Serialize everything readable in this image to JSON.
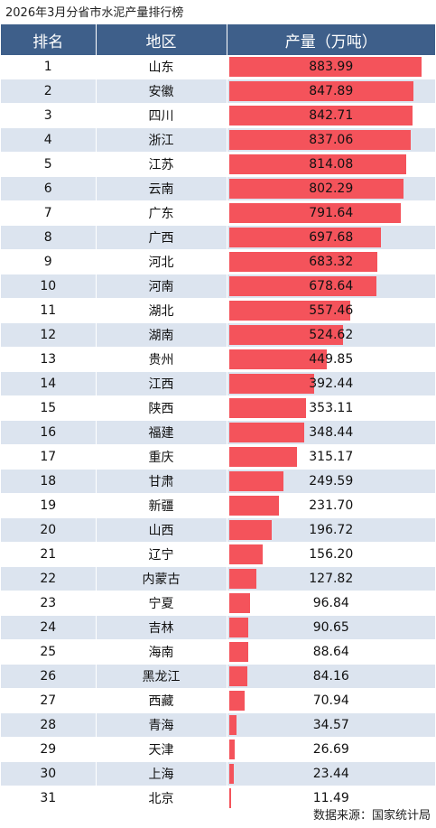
{
  "title": "2026年3月分省市水泥产量排行榜",
  "source": "数据来源：国家统计局",
  "colors": {
    "header_bg": "#3e5f8a",
    "bar": "#f4535b",
    "stripe": "#dce4ef"
  },
  "chart_data": {
    "type": "table",
    "columns": [
      "排名",
      "地区",
      "产量（万吨）"
    ],
    "xlim": [
      0,
      883.99
    ],
    "rows": [
      {
        "rank": "1",
        "region": "山东",
        "value": "883.99"
      },
      {
        "rank": "2",
        "region": "安徽",
        "value": "847.89"
      },
      {
        "rank": "3",
        "region": "四川",
        "value": "842.71"
      },
      {
        "rank": "4",
        "region": "浙江",
        "value": "837.06"
      },
      {
        "rank": "5",
        "region": "江苏",
        "value": "814.08"
      },
      {
        "rank": "6",
        "region": "云南",
        "value": "802.29"
      },
      {
        "rank": "7",
        "region": "广东",
        "value": "791.64"
      },
      {
        "rank": "8",
        "region": "广西",
        "value": "697.68"
      },
      {
        "rank": "9",
        "region": "河北",
        "value": "683.32"
      },
      {
        "rank": "10",
        "region": "河南",
        "value": "678.64"
      },
      {
        "rank": "11",
        "region": "湖北",
        "value": "557.46"
      },
      {
        "rank": "12",
        "region": "湖南",
        "value": "524.62"
      },
      {
        "rank": "13",
        "region": "贵州",
        "value": "449.85"
      },
      {
        "rank": "14",
        "region": "江西",
        "value": "392.44"
      },
      {
        "rank": "15",
        "region": "陕西",
        "value": "353.11"
      },
      {
        "rank": "16",
        "region": "福建",
        "value": "348.44"
      },
      {
        "rank": "17",
        "region": "重庆",
        "value": "315.17"
      },
      {
        "rank": "18",
        "region": "甘肃",
        "value": "249.59"
      },
      {
        "rank": "19",
        "region": "新疆",
        "value": "231.70"
      },
      {
        "rank": "20",
        "region": "山西",
        "value": "196.72"
      },
      {
        "rank": "21",
        "region": "辽宁",
        "value": "156.20"
      },
      {
        "rank": "22",
        "region": "内蒙古",
        "value": "127.82"
      },
      {
        "rank": "23",
        "region": "宁夏",
        "value": "96.84"
      },
      {
        "rank": "24",
        "region": "吉林",
        "value": "90.65"
      },
      {
        "rank": "25",
        "region": "海南",
        "value": "88.64"
      },
      {
        "rank": "26",
        "region": "黑龙江",
        "value": "84.16"
      },
      {
        "rank": "27",
        "region": "西藏",
        "value": "70.94"
      },
      {
        "rank": "28",
        "region": "青海",
        "value": "34.57"
      },
      {
        "rank": "29",
        "region": "天津",
        "value": "26.69"
      },
      {
        "rank": "30",
        "region": "上海",
        "value": "23.44"
      },
      {
        "rank": "31",
        "region": "北京",
        "value": "11.49"
      }
    ]
  }
}
